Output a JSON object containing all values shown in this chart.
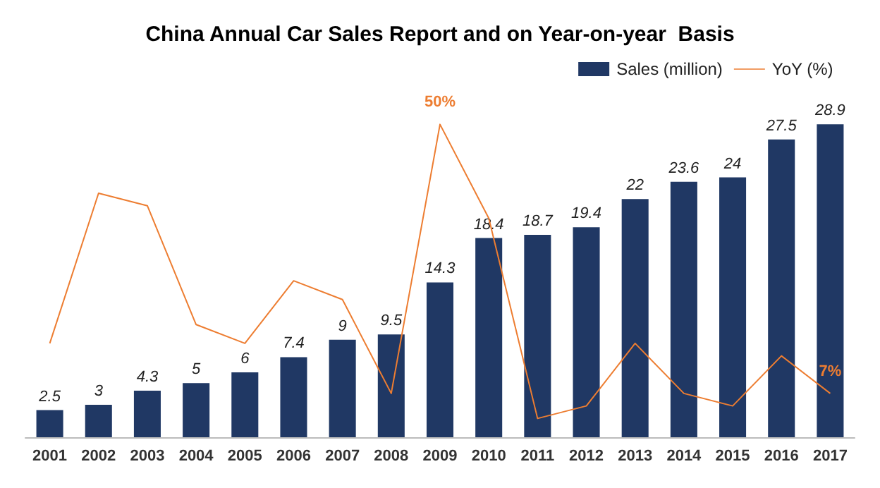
{
  "chart_data": {
    "type": "bar",
    "title": "China Annual Car Sales Report and on Year-on-year  Basis",
    "categories": [
      "2001",
      "2002",
      "2003",
      "2004",
      "2005",
      "2006",
      "2007",
      "2008",
      "2009",
      "2010",
      "2011",
      "2012",
      "2013",
      "2014",
      "2015",
      "2016",
      "2017"
    ],
    "series": [
      {
        "name": "Sales (million)",
        "color": "#203864",
        "values": [
          2.5,
          3,
          4.3,
          5,
          6,
          7.4,
          9,
          9.5,
          14.3,
          18.4,
          18.7,
          19.4,
          22,
          23.6,
          24,
          27.5,
          28.9
        ],
        "value_labels": [
          "2.5",
          "3",
          "4.3",
          "5",
          "6",
          "7.4",
          "9",
          "9.5",
          "14.3",
          "18.4",
          "18.7",
          "19.4",
          "22",
          "23.6",
          "24",
          "27.5",
          "28.9"
        ]
      },
      {
        "name": "YoY (%)",
        "type": "line",
        "axis": "y2",
        "color": "#ed7d31",
        "values": [
          15,
          39,
          37,
          18,
          15,
          25,
          22,
          7,
          50,
          35,
          3,
          5,
          15,
          7,
          5,
          13,
          7
        ],
        "value_labels": [
          null,
          null,
          null,
          null,
          null,
          null,
          null,
          null,
          "50%",
          null,
          null,
          null,
          null,
          null,
          null,
          null,
          "7%"
        ]
      }
    ],
    "tick_labels": "x",
    "grid": false,
    "legend": "top right",
    "marker": "none"
  }
}
